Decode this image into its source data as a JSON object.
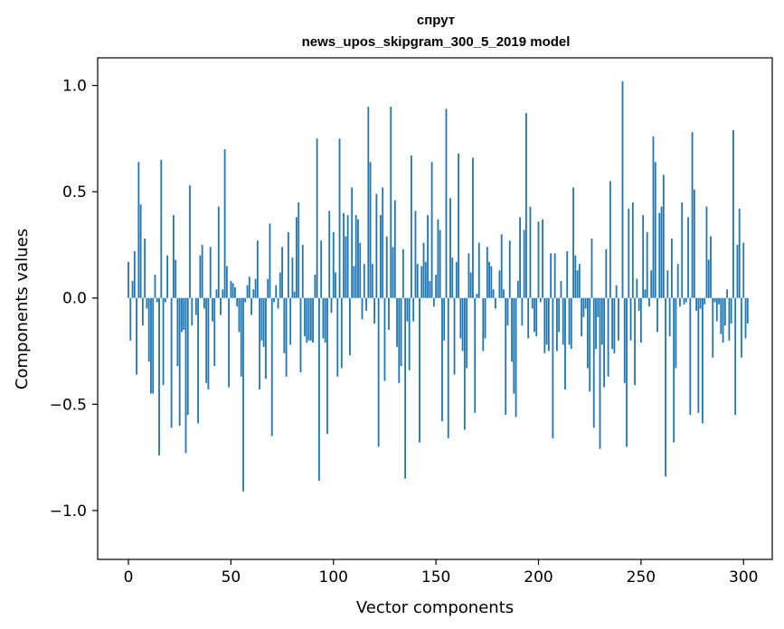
{
  "chart_data": {
    "type": "bar",
    "title_lines": [
      "спрут",
      "news_upos_skipgram_300_5_2019 model"
    ],
    "xlabel": "Vector components",
    "ylabel": "Components values",
    "xlim": [
      -15,
      314
    ],
    "ylim": [
      -1.23,
      1.13
    ],
    "xticks": [
      0,
      50,
      100,
      150,
      200,
      250,
      300
    ],
    "yticks": [
      -1.0,
      -0.5,
      0.0,
      0.5,
      1.0
    ],
    "ytick_labels": [
      "−1.0",
      "−0.5",
      "0.0",
      "0.5",
      "1.0"
    ],
    "grid": false,
    "bar_color": "#1f77b4",
    "x_start": 0,
    "values": [
      0.17,
      -0.2,
      0.08,
      0.22,
      -0.36,
      0.64,
      0.44,
      -0.13,
      0.28,
      -0.05,
      -0.3,
      -0.45,
      -0.45,
      0.11,
      -0.02,
      -0.74,
      0.65,
      -0.41,
      -0.02,
      0.2,
      0.0,
      -0.61,
      0.39,
      0.18,
      -0.32,
      -0.6,
      -0.16,
      -0.15,
      -0.73,
      -0.55,
      0.53,
      -0.13,
      0.0,
      -0.08,
      -0.59,
      0.2,
      0.25,
      -0.05,
      -0.4,
      -0.43,
      0.24,
      -0.11,
      -0.32,
      0.04,
      0.43,
      -0.08,
      0.04,
      0.7,
      0.15,
      -0.42,
      0.08,
      0.07,
      0.05,
      -0.04,
      -0.16,
      -0.37,
      -0.91,
      -0.02,
      0.06,
      0.1,
      -0.08,
      0.04,
      0.09,
      0.27,
      -0.43,
      -0.2,
      -0.23,
      -0.38,
      0.09,
      0.35,
      -0.65,
      -0.02,
      0.06,
      -0.05,
      0.12,
      0.24,
      -0.26,
      -0.37,
      0.31,
      -0.22,
      0.19,
      0.03,
      0.38,
      0.45,
      -0.35,
      0.25,
      -0.18,
      -0.21,
      -0.2,
      -0.2,
      -0.21,
      0.11,
      0.75,
      -0.86,
      0.27,
      -0.19,
      -0.21,
      -0.64,
      0.41,
      -0.07,
      0.31,
      0.12,
      -0.37,
      0.75,
      -0.33,
      0.4,
      0.29,
      0.39,
      -0.27,
      0.52,
      0.15,
      0.39,
      0.37,
      0.26,
      -0.1,
      0.16,
      -0.06,
      0.9,
      0.64,
      0.16,
      -0.12,
      0.49,
      -0.7,
      0.39,
      0.52,
      -0.39,
      0.29,
      -0.15,
      0.9,
      0.24,
      0.46,
      -0.23,
      -0.4,
      -0.32,
      0.23,
      -0.85,
      -0.11,
      -0.34,
      0.67,
      -0.11,
      0.41,
      0.16,
      -0.68,
      0.15,
      0.26,
      0.17,
      0.39,
      0.08,
      0.64,
      -0.04,
      0.11,
      0.37,
      0.32,
      -0.58,
      -0.2,
      0.89,
      -0.66,
      0.47,
      0.19,
      -0.36,
      0.17,
      0.68,
      -0.19,
      -0.25,
      -0.62,
      -0.33,
      0.21,
      0.12,
      0.66,
      -0.54,
      0.02,
      0.26,
      0.0,
      -0.25,
      -0.19,
      0.24,
      0.17,
      0.15,
      0.04,
      -0.05,
      0.0,
      0.13,
      0.3,
      0.04,
      -0.55,
      -0.13,
      0.27,
      -0.3,
      -0.45,
      -0.56,
      0.08,
      0.38,
      -0.13,
      0.32,
      0.87,
      -0.19,
      0.43,
      -0.05,
      -0.16,
      -0.18,
      0.36,
      -0.02,
      0.37,
      -0.26,
      -0.22,
      -0.25,
      0.21,
      -0.66,
      0.21,
      -0.25,
      -0.16,
      0.08,
      -0.22,
      -0.43,
      0.22,
      -0.22,
      -0.24,
      0.52,
      0.2,
      0.13,
      0.16,
      -0.18,
      -0.09,
      -0.05,
      -0.33,
      -0.44,
      0.28,
      -0.61,
      -0.24,
      -0.09,
      -0.71,
      -0.22,
      -0.42,
      0.23,
      -0.37,
      0.55,
      -0.24,
      -0.26,
      0.06,
      -0.2,
      0.0,
      1.02,
      -0.4,
      -0.7,
      0.42,
      -0.2,
      0.45,
      -0.41,
      0.09,
      -0.06,
      -0.21,
      0.39,
      0.04,
      0.31,
      -0.04,
      0.13,
      0.76,
      0.64,
      -0.16,
      0.4,
      0.43,
      0.58,
      -0.84,
      0.13,
      -0.18,
      0.28,
      -0.68,
      -0.33,
      0.16,
      -0.04,
      0.45,
      -0.03,
      -0.02,
      0.38,
      -0.55,
      0.78,
      0.51,
      -0.06,
      -0.54,
      -0.05,
      -0.59,
      -0.03,
      0.43,
      0.18,
      0.29,
      -0.28,
      -0.02,
      -0.11,
      -0.03,
      -0.17,
      -0.21,
      -0.13,
      0.04,
      -0.2,
      -0.12,
      0.79,
      -0.55,
      0.25,
      0.42,
      -0.28,
      0.26,
      -0.19,
      -0.12
    ]
  }
}
